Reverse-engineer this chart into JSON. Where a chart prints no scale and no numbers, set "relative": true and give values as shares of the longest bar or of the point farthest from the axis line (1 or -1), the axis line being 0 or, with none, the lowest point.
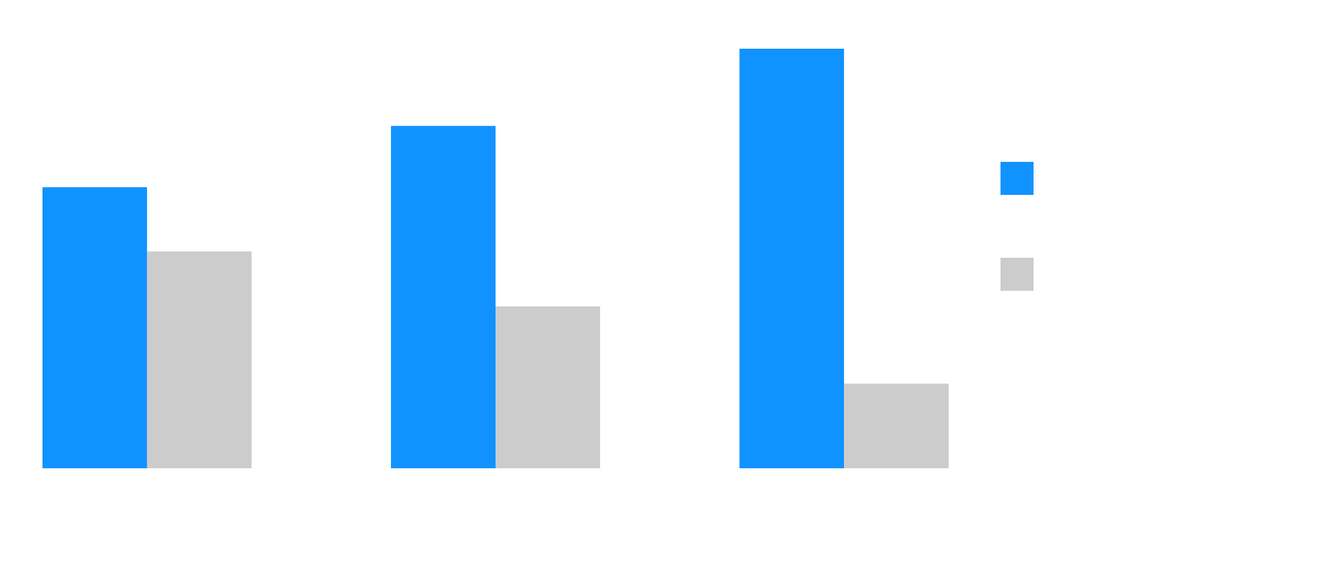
{
  "chart_data": {
    "type": "bar",
    "relative": true,
    "categories": [
      null,
      null,
      null
    ],
    "series": [
      {
        "color": "#1193ff",
        "values": [
          0.67,
          0.816,
          1
        ]
      },
      {
        "color": "#cccccc",
        "values": [
          0.517,
          0.386,
          0.202
        ]
      }
    ],
    "grid": false
  }
}
